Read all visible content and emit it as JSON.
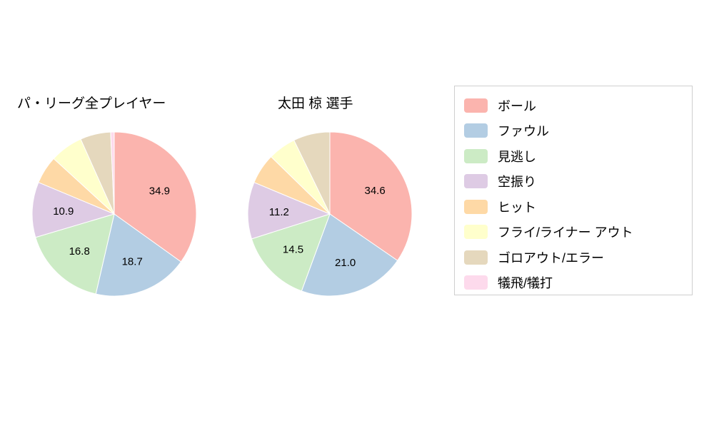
{
  "chart_data": [
    {
      "type": "pie",
      "title": "パ・リーグ全プレイヤー",
      "labels": [
        "ボール",
        "ファウル",
        "見逃し",
        "空振り",
        "ヒット",
        "フライ/ライナー アウト",
        "ゴロアウト/エラー",
        "犠飛/犠打"
      ],
      "values": [
        34.9,
        18.7,
        16.8,
        10.9,
        5.5,
        6.5,
        6.0,
        0.7
      ],
      "value_labels_shown": [
        "34.9",
        "18.7",
        "16.8",
        "10.9"
      ],
      "label_min": 10,
      "start_angle": "top",
      "direction": "clockwise",
      "legend_position": "right"
    },
    {
      "type": "pie",
      "title": "太田 椋  選手",
      "labels": [
        "ボール",
        "ファウル",
        "見逃し",
        "空振り",
        "ヒット",
        "フライ/ライナー アウト",
        "ゴロアウト/エラー",
        "犠飛/犠打"
      ],
      "values": [
        34.6,
        21.0,
        14.5,
        11.2,
        6.0,
        5.5,
        7.2,
        0.0
      ],
      "value_labels_shown": [
        "34.6",
        "21.0",
        "14.5",
        "11.2"
      ],
      "label_min": 10,
      "start_angle": "top",
      "direction": "clockwise",
      "legend_position": "right"
    }
  ],
  "legend": {
    "items": [
      {
        "label": "ボール",
        "color": "#fbb4ae"
      },
      {
        "label": "ファウル",
        "color": "#b3cde3"
      },
      {
        "label": "見逃し",
        "color": "#ccebc5"
      },
      {
        "label": "空振り",
        "color": "#decbe4"
      },
      {
        "label": "ヒット",
        "color": "#fed9a6"
      },
      {
        "label": "フライ/ライナー アウト",
        "color": "#ffffcc"
      },
      {
        "label": "ゴロアウト/エラー",
        "color": "#e5d8bd"
      },
      {
        "label": "犠飛/犠打",
        "color": "#fddaec"
      }
    ]
  },
  "style": {
    "slice_stroke": "#ffffff",
    "label_color": "#000000"
  }
}
